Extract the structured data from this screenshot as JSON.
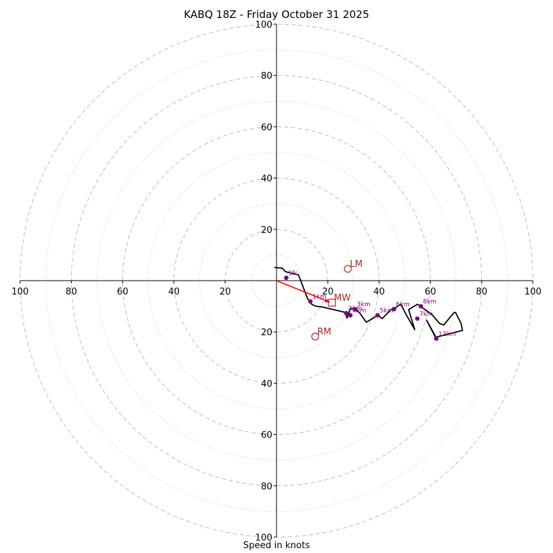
{
  "chart_data": {
    "type": "scatter",
    "subtype": "hodograph",
    "title": "KABQ 18Z - Friday October 31 2025",
    "xlabel": "Speed in knots",
    "ylabel": "",
    "xlim": [
      -100,
      100
    ],
    "ylim": [
      -100,
      100
    ],
    "rings_major": [
      20,
      40,
      60,
      80,
      100
    ],
    "rings_minor": [
      10,
      30,
      50,
      70,
      90
    ],
    "tick_labels": {
      "x_left": [
        "100",
        "80",
        "60",
        "40",
        "20"
      ],
      "x_right": [
        "20",
        "40",
        "60",
        "80",
        "100"
      ],
      "y_top": [
        "20",
        "40",
        "60",
        "80",
        "100"
      ],
      "y_bottom": [
        "20",
        "40",
        "60",
        "80",
        "100"
      ]
    },
    "trace": {
      "name": "hodograph",
      "color": "#000000",
      "points": [
        [
          -0.8,
          5.1
        ],
        [
          2.2,
          4.9
        ],
        [
          3.5,
          3.5
        ],
        [
          8.6,
          2.2
        ],
        [
          12.1,
          -7.0
        ],
        [
          13.7,
          -9.2
        ],
        [
          15.4,
          -10.0
        ],
        [
          17.5,
          -10.2
        ],
        [
          26.9,
          -12.4
        ],
        [
          27.5,
          -14.6
        ],
        [
          28.0,
          -13.2
        ],
        [
          28.8,
          -10.8
        ],
        [
          30.2,
          -11.1
        ],
        [
          32.3,
          -12.4
        ],
        [
          35.0,
          -16.2
        ],
        [
          37.7,
          -14.6
        ],
        [
          39.4,
          -13.5
        ],
        [
          41.2,
          -14.8
        ],
        [
          44.7,
          -11.3
        ],
        [
          46.4,
          -10.5
        ],
        [
          48.5,
          -9.2
        ],
        [
          50.7,
          -13.5
        ],
        [
          53.9,
          -19.1
        ],
        [
          51.5,
          -11.3
        ],
        [
          55.0,
          -9.2
        ],
        [
          60.6,
          -13.2
        ],
        [
          63.6,
          -16.7
        ],
        [
          65.2,
          -17.3
        ],
        [
          67.4,
          -14.6
        ],
        [
          69.3,
          -12.4
        ],
        [
          69.8,
          -12.4
        ],
        [
          72.0,
          -16.7
        ],
        [
          72.5,
          -19.4
        ],
        [
          62.0,
          -22.1
        ],
        [
          58.5,
          -15.4
        ],
        [
          62.8,
          -23.2
        ]
      ]
    },
    "markers": [
      {
        "label": "Sfc",
        "u": 3.8,
        "v": 1.1
      },
      {
        "label": "1km",
        "u": 13.2,
        "v": -8.1
      },
      {
        "label": "2km",
        "u": 27.2,
        "v": -12.7
      },
      {
        "label": "3km",
        "u": 30.5,
        "v": -11.1
      },
      {
        "label": "4km",
        "u": 28.8,
        "v": -13.5
      },
      {
        "label": "5km",
        "u": 39.4,
        "v": -13.5
      },
      {
        "label": "6km",
        "u": 45.8,
        "v": -11.1
      },
      {
        "label": "7km",
        "u": 54.9,
        "v": -14.8
      },
      {
        "label": "8km",
        "u": 56.3,
        "v": -10.0
      },
      {
        "label": "12km",
        "u": 62.3,
        "v": -22.6
      }
    ],
    "marker_color": "#800080",
    "storm_motion": {
      "color": "#b22222",
      "LM": {
        "label": "LM",
        "u": 27.8,
        "v": 4.6,
        "symbol": "circle"
      },
      "RM": {
        "label": "RM",
        "u": 15.1,
        "v": -21.8,
        "symbol": "circle"
      },
      "MW": {
        "label": "MW",
        "u": 21.6,
        "v": -8.6,
        "symbol": "square"
      }
    },
    "mean_wind_vector": {
      "color": "#ff0000",
      "u": 20.8,
      "v": -8.4
    },
    "ring_color": "#bbbbbb"
  }
}
